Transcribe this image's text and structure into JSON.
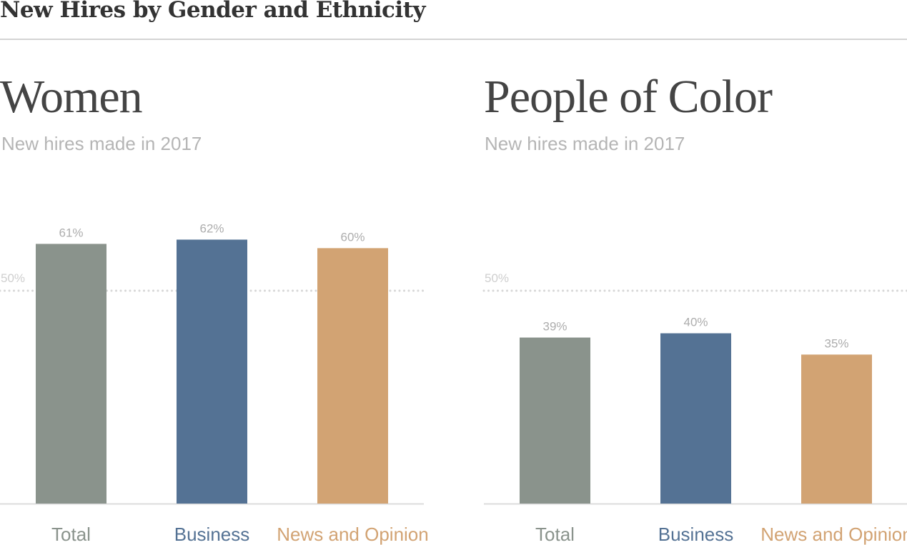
{
  "title": "New Hires by Gender and Ethnicity",
  "colors": {
    "Total": "#8a938c",
    "Business": "#547294",
    "News and Opinion": "#d2a373"
  },
  "chart_data": [
    {
      "type": "bar",
      "title": "Women",
      "subtitle": "New hires made in 2017",
      "categories": [
        "Total",
        "Business",
        "News and Opinion"
      ],
      "values": [
        61,
        62,
        60
      ],
      "value_labels": [
        "61%",
        "62%",
        "60%"
      ],
      "reference_line": {
        "value": 50,
        "label": "50%"
      },
      "ylim": [
        0,
        100
      ]
    },
    {
      "type": "bar",
      "title": "People of Color",
      "subtitle": "New hires made in 2017",
      "categories": [
        "Total",
        "Business",
        "News and Opinion"
      ],
      "values": [
        39,
        40,
        35
      ],
      "value_labels": [
        "39%",
        "40%",
        "35%"
      ],
      "reference_line": {
        "value": 50,
        "label": "50%"
      },
      "ylim": [
        0,
        100
      ]
    }
  ]
}
